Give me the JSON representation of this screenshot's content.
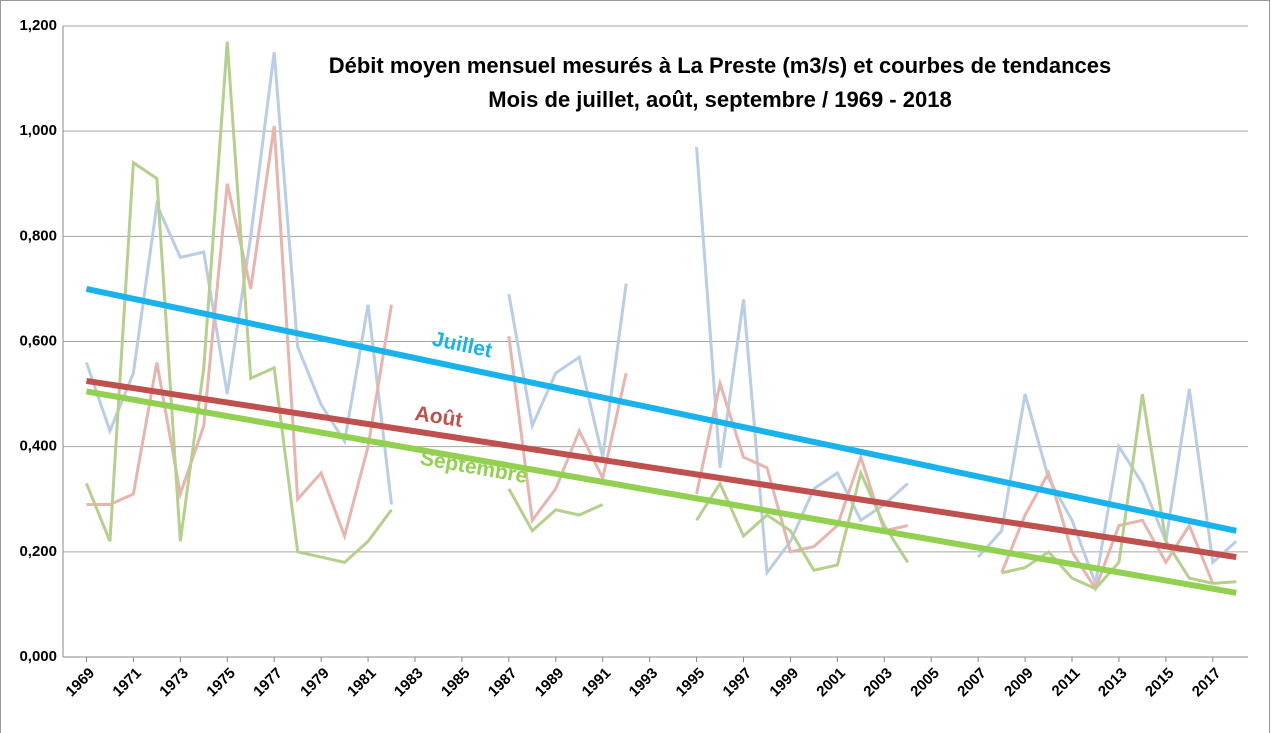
{
  "chart_data": {
    "type": "line",
    "title": [
      "Débit moyen mensuel mesurés à La Preste (m3/s) et courbes de tendances",
      "Mois de juillet, août, septembre  / 1969 - 2018"
    ],
    "x": [
      1969,
      1970,
      1971,
      1972,
      1973,
      1974,
      1975,
      1976,
      1977,
      1978,
      1979,
      1980,
      1981,
      1982,
      1983,
      1984,
      1985,
      1986,
      1987,
      1988,
      1989,
      1990,
      1991,
      1992,
      1993,
      1994,
      1995,
      1996,
      1997,
      1998,
      1999,
      2000,
      2001,
      2002,
      2003,
      2004,
      2005,
      2006,
      2007,
      2008,
      2009,
      2010,
      2011,
      2012,
      2013,
      2014,
      2015,
      2016,
      2017,
      2018
    ],
    "xlim": [
      1968,
      2018.5
    ],
    "xticks": [
      1969,
      1971,
      1973,
      1975,
      1977,
      1979,
      1981,
      1983,
      1985,
      1987,
      1989,
      1991,
      1993,
      1995,
      1997,
      1999,
      2001,
      2003,
      2005,
      2007,
      2009,
      2011,
      2013,
      2015,
      2017
    ],
    "ylim": [
      0,
      1.2
    ],
    "yticks": [
      {
        "value": 0,
        "label": "0,000"
      },
      {
        "value": 0.2,
        "label": "0,200"
      },
      {
        "value": 0.4,
        "label": "0,400"
      },
      {
        "value": 0.6,
        "label": "0,600"
      },
      {
        "value": 0.8,
        "label": "0,800"
      },
      {
        "value": 1.0,
        "label": "1,000"
      },
      {
        "value": 1.2,
        "label": "1,200"
      }
    ],
    "grid": true,
    "series": [
      {
        "name": "Juillet",
        "color": "#b9cde6",
        "values": [
          0.56,
          0.43,
          0.54,
          0.86,
          0.76,
          0.77,
          0.5,
          0.8,
          1.15,
          0.59,
          0.48,
          0.41,
          0.67,
          0.29,
          null,
          null,
          null,
          null,
          0.69,
          0.44,
          0.54,
          0.57,
          0.38,
          0.71,
          null,
          null,
          0.97,
          0.36,
          0.68,
          0.16,
          0.22,
          0.32,
          0.35,
          0.26,
          0.29,
          0.33,
          null,
          null,
          0.19,
          0.24,
          0.5,
          0.34,
          0.26,
          0.14,
          0.4,
          0.33,
          0.22,
          0.51,
          0.18,
          0.22
        ]
      },
      {
        "name": "Août",
        "color": "#e8b4ae",
        "values": [
          0.29,
          0.29,
          0.31,
          0.56,
          0.31,
          0.44,
          0.9,
          0.7,
          1.01,
          0.3,
          0.35,
          0.23,
          0.4,
          0.67,
          null,
          null,
          null,
          null,
          0.61,
          0.26,
          0.32,
          0.43,
          0.34,
          0.54,
          null,
          null,
          0.31,
          0.52,
          0.38,
          0.36,
          0.2,
          0.21,
          0.25,
          0.38,
          0.24,
          0.25,
          null,
          null,
          null,
          0.16,
          0.27,
          0.35,
          0.2,
          0.13,
          0.25,
          0.26,
          0.18,
          0.25,
          0.14,
          null
        ]
      },
      {
        "name": "Septembre",
        "color": "#b5d08d",
        "values": [
          0.33,
          0.22,
          0.94,
          0.91,
          0.22,
          0.55,
          1.17,
          0.53,
          0.55,
          0.2,
          0.19,
          0.18,
          0.22,
          0.28,
          null,
          null,
          null,
          null,
          0.32,
          0.24,
          0.28,
          0.27,
          0.29,
          null,
          null,
          null,
          0.26,
          0.33,
          0.23,
          0.27,
          0.24,
          0.165,
          0.175,
          0.35,
          0.25,
          0.18,
          null,
          null,
          null,
          0.16,
          0.17,
          0.2,
          0.15,
          0.13,
          0.18,
          0.5,
          0.22,
          0.15,
          0.14,
          0.143
        ]
      }
    ],
    "trends": [
      {
        "name": "Juillet",
        "color": "#18b2ec",
        "values": [
          0.7,
          0.24
        ]
      },
      {
        "name": "Août",
        "color": "#c0504d",
        "values": [
          0.525,
          0.19
        ]
      },
      {
        "name": "Septembre",
        "color": "#92d050",
        "values": [
          0.505,
          0.122
        ]
      }
    ]
  }
}
